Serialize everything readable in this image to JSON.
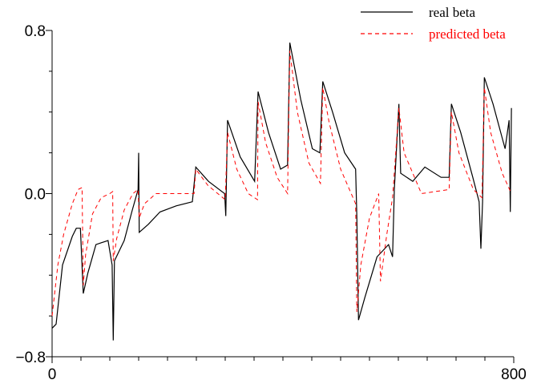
{
  "chart_data": {
    "type": "line",
    "legend": "upper right",
    "xlim": [
      0,
      800
    ],
    "xticks": [
      0,
      800
    ],
    "xminor_ticks": [
      50,
      100,
      150,
      200,
      250,
      300,
      350,
      400,
      450,
      500,
      550,
      600,
      650,
      700,
      750
    ],
    "ylim": [
      -0.8,
      0.8
    ],
    "yticks": [
      0.8,
      {
        "value": 0,
        "label": "0.0"
      },
      {
        "value": -0.8,
        "label": "−0.8"
      }
    ],
    "yminor_ticks": [
      -0.6,
      -0.4,
      -0.2,
      0.2,
      0.4,
      0.6
    ],
    "series": [
      {
        "name": "real beta",
        "color": "#000000",
        "dash": "solid",
        "x": [
          0,
          7,
          18,
          35,
          42,
          49,
          54,
          62,
          76,
          97,
          104,
          106,
          108,
          125,
          139,
          149,
          150,
          151,
          167,
          187,
          215,
          243,
          249,
          271,
          299,
          301,
          304,
          326,
          351,
          357,
          375,
          396,
          408,
          412,
          431,
          451,
          464,
          469,
          486,
          507,
          526,
          528,
          531,
          542,
          563,
          583,
          590,
          593,
          601,
          604,
          625,
          646,
          674,
          688,
          692,
          708,
          729,
          740,
          743,
          746,
          749,
          764,
          785,
          792,
          794,
          796
        ],
        "values": [
          -0.66,
          -0.64,
          -0.35,
          -0.21,
          -0.17,
          -0.17,
          -0.49,
          -0.39,
          -0.25,
          -0.23,
          -0.35,
          -0.72,
          -0.33,
          -0.23,
          -0.08,
          0.02,
          0.2,
          -0.19,
          -0.15,
          -0.09,
          -0.06,
          -0.04,
          0.13,
          0.06,
          0.0,
          -0.11,
          0.36,
          0.18,
          0.06,
          0.5,
          0.3,
          0.12,
          0.14,
          0.74,
          0.46,
          0.22,
          0.2,
          0.55,
          0.4,
          0.2,
          0.12,
          -0.11,
          -0.62,
          -0.51,
          -0.31,
          -0.25,
          -0.31,
          0.02,
          0.44,
          0.1,
          0.06,
          0.13,
          0.08,
          0.08,
          0.44,
          0.3,
          0.08,
          -0.04,
          -0.27,
          -0.04,
          0.57,
          0.44,
          0.22,
          0.36,
          -0.09,
          0.42
        ]
      },
      {
        "name": "predicted beta",
        "color": "#ff0000",
        "dash": "dashed",
        "x": [
          0,
          10,
          20,
          35,
          45,
          52,
          54,
          58,
          70,
          85,
          100,
          105,
          106,
          112,
          125,
          140,
          149,
          151,
          160,
          180,
          200,
          246,
          249,
          270,
          300,
          304,
          320,
          340,
          356,
          357,
          370,
          390,
          408,
          412,
          425,
          445,
          465,
          469,
          480,
          500,
          526,
          528,
          535,
          550,
          566,
          569,
          580,
          590,
          601,
          610,
          640,
          688,
          692,
          705,
          730,
          745,
          749,
          760,
          780,
          796
        ],
        "values": [
          -0.6,
          -0.35,
          -0.2,
          -0.05,
          0.02,
          0.03,
          -0.45,
          -0.3,
          -0.1,
          -0.02,
          0.0,
          0.01,
          -0.33,
          -0.22,
          -0.08,
          0.0,
          0.02,
          -0.12,
          -0.05,
          0.0,
          0.0,
          0.0,
          0.12,
          0.04,
          -0.03,
          0.3,
          0.12,
          0.0,
          -0.03,
          0.45,
          0.25,
          0.08,
          0.0,
          0.7,
          0.4,
          0.15,
          0.05,
          0.52,
          0.35,
          0.12,
          -0.05,
          -0.58,
          -0.35,
          -0.12,
          0.0,
          -0.43,
          -0.2,
          -0.02,
          0.42,
          0.2,
          0.0,
          0.02,
          0.4,
          0.2,
          0.02,
          -0.02,
          0.52,
          0.3,
          0.1,
          0.0
        ]
      }
    ]
  }
}
